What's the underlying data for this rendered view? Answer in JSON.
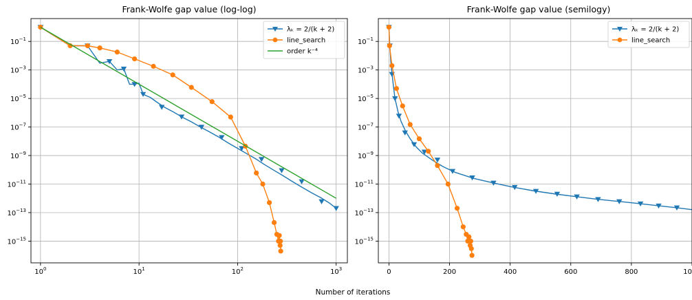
{
  "figure": {
    "xlabel": "Number of iterations"
  },
  "colors": {
    "step": "#1f77b4",
    "line_search": "#ff7f0e",
    "order": "#2ca02c",
    "grid": "#b0b0b0"
  },
  "chart_data": [
    {
      "type": "line",
      "title": "Frank-Wolfe gap value (log-log)",
      "xscale": "log",
      "yscale": "log",
      "xlim": [
        0.8,
        1300
      ],
      "ylim": [
        3e-17,
        4
      ],
      "x_ticks": [
        {
          "base": "10",
          "exp": "0",
          "value": 1
        },
        {
          "base": "10",
          "exp": "1",
          "value": 10
        },
        {
          "base": "10",
          "exp": "2",
          "value": 100
        },
        {
          "base": "10",
          "exp": "3",
          "value": 1000
        }
      ],
      "y_ticks": [
        {
          "base": "10",
          "exp": "−1",
          "value": 0.1
        },
        {
          "base": "10",
          "exp": "−3",
          "value": 0.001
        },
        {
          "base": "10",
          "exp": "−5",
          "value": 1e-05
        },
        {
          "base": "10",
          "exp": "−7",
          "value": 1e-07
        },
        {
          "base": "10",
          "exp": "−9",
          "value": 1e-09
        },
        {
          "base": "10",
          "exp": "−11",
          "value": 1e-11
        },
        {
          "base": "10",
          "exp": "−13",
          "value": 1e-13
        },
        {
          "base": "10",
          "exp": "−15",
          "value": 1e-15
        }
      ],
      "grid": true,
      "legend": {
        "position": "top-right",
        "entries": [
          {
            "label": "λₖ = 2/(k + 2)",
            "series": 0
          },
          {
            "label": "line_search",
            "series": 1
          },
          {
            "label": "order k⁻⁴",
            "series": 2
          }
        ]
      },
      "series": [
        {
          "name": "λₖ = 2/(k + 2)",
          "color": "#1f77b4",
          "marker": "triangle-down",
          "x": [
            1,
            2,
            3,
            4,
            5,
            6,
            7,
            8,
            9,
            10,
            11,
            12,
            13,
            15,
            18,
            22,
            27,
            34,
            42,
            52,
            65,
            80,
            100,
            125,
            155,
            190,
            235,
            290,
            360,
            450,
            560,
            700,
            860,
            1000
          ],
          "y": [
            1.0,
            0.05,
            0.05,
            0.003,
            0.004,
            0.001,
            0.0012,
            0.0001,
            0.0001,
            0.00012,
            2e-05,
            1.5e-05,
            1.2e-05,
            5.8e-06,
            2.5e-06,
            1.2e-06,
            5.2e-07,
            2.3e-07,
            1e-07,
            4.5e-08,
            1.9e-08,
            7.8e-09,
            3.2e-09,
            1.3e-09,
            5.5e-10,
            2.2e-10,
            9e-11,
            3.8e-11,
            1.5e-11,
            6e-12,
            2.5e-12,
            1.1e-12,
            4.5e-13,
            2e-13
          ],
          "marker_x": [
            1,
            3,
            5,
            7,
            9,
            11,
            17,
            27,
            43,
            69,
            110,
            175,
            280,
            447,
            712,
            1000
          ],
          "marker_y": [
            1.0,
            0.05,
            0.004,
            0.0012,
            0.0001,
            2e-05,
            2.5e-06,
            5.2e-07,
            1e-07,
            1.9e-08,
            3.2e-09,
            5.5e-10,
            9e-11,
            1.5e-11,
            6e-13,
            2e-13
          ]
        },
        {
          "name": "line_search",
          "color": "#ff7f0e",
          "marker": "circle",
          "x": [
            1,
            2,
            3,
            4,
            6,
            9,
            14,
            22,
            34,
            55,
            85,
            120,
            155,
            180,
            210,
            235,
            250,
            260,
            265,
            270,
            272,
            274
          ],
          "y": [
            1.0,
            0.05,
            0.05,
            0.035,
            0.018,
            0.006,
            0.0018,
            0.00045,
            6e-05,
            6e-06,
            5e-07,
            4.5e-09,
            6e-11,
            1e-11,
            5e-13,
            2e-14,
            3e-15,
            1e-15,
            2.5e-15,
            5e-16,
            1e-15,
            2e-16
          ]
        },
        {
          "name": "order k⁻⁴",
          "color": "#2ca02c",
          "marker": "none",
          "x": [
            1,
            1000
          ],
          "y": [
            1.0,
            1e-12
          ]
        }
      ]
    },
    {
      "type": "line",
      "title": "Frank-Wolfe gap value (semilogy)",
      "xscale": "linear",
      "yscale": "log",
      "xlim": [
        -35,
        1000
      ],
      "ylim": [
        3e-17,
        4
      ],
      "x_ticks": [
        {
          "label": "0",
          "value": 0
        },
        {
          "label": "200",
          "value": 200
        },
        {
          "label": "400",
          "value": 400
        },
        {
          "label": "600",
          "value": 600
        },
        {
          "label": "800",
          "value": 800
        },
        {
          "label": "1000",
          "value": 1000
        }
      ],
      "y_ticks": [
        {
          "base": "10",
          "exp": "−1",
          "value": 0.1
        },
        {
          "base": "10",
          "exp": "−3",
          "value": 0.001
        },
        {
          "base": "10",
          "exp": "−5",
          "value": 1e-05
        },
        {
          "base": "10",
          "exp": "−7",
          "value": 1e-07
        },
        {
          "base": "10",
          "exp": "−9",
          "value": 1e-09
        },
        {
          "base": "10",
          "exp": "−11",
          "value": 1e-11
        },
        {
          "base": "10",
          "exp": "−13",
          "value": 1e-13
        },
        {
          "base": "10",
          "exp": "−15",
          "value": 1e-15
        }
      ],
      "grid": true,
      "legend": {
        "position": "top-right",
        "entries": [
          {
            "label": "λₖ = 2/(k + 2)",
            "series": 0
          },
          {
            "label": "line_search",
            "series": 1
          }
        ]
      },
      "series": [
        {
          "name": "λₖ = 2/(k + 2)",
          "color": "#1f77b4",
          "marker": "triangle-down",
          "x": [
            0,
            3,
            6,
            10,
            15,
            20,
            30,
            40,
            55,
            70,
            90,
            110,
            145,
            180,
            220,
            280,
            345,
            410,
            480,
            550,
            620,
            690,
            760,
            830,
            890,
            950,
            1000
          ],
          "y": [
            1.0,
            0.05,
            0.004,
            0.0006,
            7e-05,
            1e-05,
            1.2e-06,
            2.5e-07,
            5e-08,
            1.5e-08,
            4e-09,
            1.5e-09,
            4.5e-10,
            1.6e-10,
            6.5e-11,
            2.5e-11,
            1.2e-11,
            6e-12,
            3.3e-12,
            2e-12,
            1.3e-12,
            8.5e-13,
            6e-13,
            4.2e-13,
            3e-13,
            2.2e-13,
            1.6e-13
          ],
          "marker_x": [
            0,
            3,
            10,
            20,
            33,
            53,
            83,
            117,
            160,
            210,
            275,
            345,
            415,
            485,
            555,
            620,
            690,
            760,
            830,
            890,
            950
          ],
          "marker_y": [
            1.0,
            0.05,
            0.0005,
            1e-05,
            6e-07,
            4e-08,
            6e-09,
            1.8e-09,
            5e-10,
            8e-11,
            2.8e-11,
            1.2e-11,
            6e-12,
            3.2e-12,
            2e-12,
            1.3e-12,
            8.5e-13,
            6e-13,
            4.2e-13,
            3e-13,
            2.2e-13
          ]
        },
        {
          "name": "line_search",
          "color": "#ff7f0e",
          "marker": "circle",
          "x": [
            0,
            2,
            10,
            25,
            45,
            70,
            100,
            130,
            160,
            195,
            225,
            245,
            255,
            260,
            264,
            268,
            270,
            272,
            274
          ],
          "y": [
            1.0,
            0.05,
            0.002,
            5e-05,
            3e-06,
            1.5e-07,
            1.5e-08,
            2e-09,
            2e-10,
            1e-11,
            2e-13,
            1e-14,
            3e-15,
            1e-15,
            2e-15,
            5e-16,
            1e-15,
            3e-16,
            1e-16
          ]
        }
      ]
    }
  ]
}
